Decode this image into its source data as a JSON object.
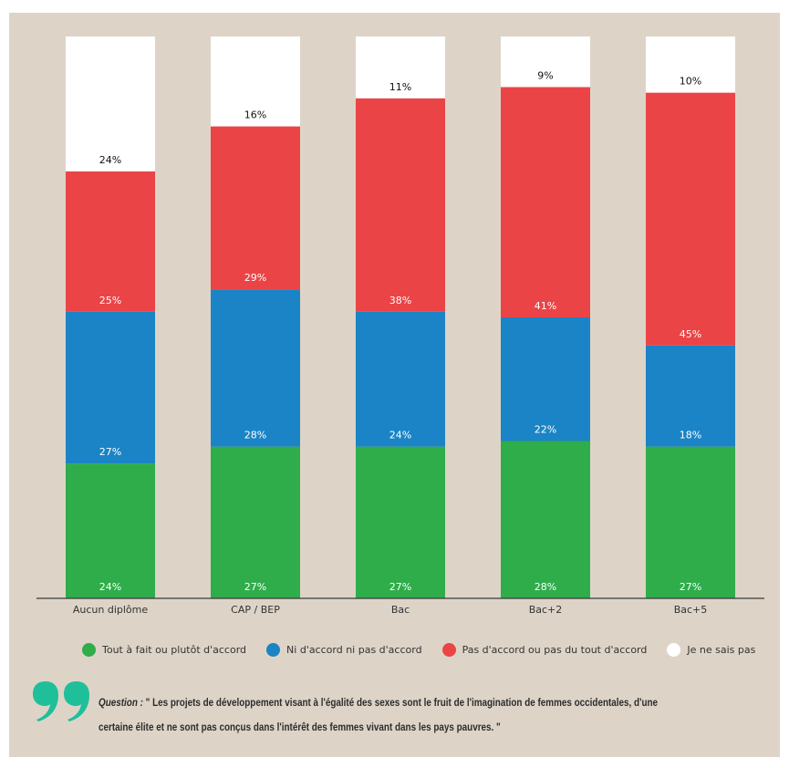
{
  "chart_data": {
    "type": "bar",
    "stacked": true,
    "categories": [
      "Aucun diplôme",
      "CAP / BEP",
      "Bac",
      "Bac+2",
      "Bac+5"
    ],
    "series": [
      {
        "name": "Tout à fait ou plutôt d'accord",
        "values": [
          24,
          27,
          27,
          28,
          27
        ],
        "labels": [
          "24%",
          "27%",
          "27%",
          "28%",
          "27%"
        ],
        "color": "#2fad4a"
      },
      {
        "name": "Ni d'accord ni pas d'accord",
        "values": [
          27,
          28,
          24,
          22,
          18
        ],
        "labels": [
          "27%",
          "28%",
          "24%",
          "22%",
          "18%"
        ],
        "color": "#1b84c6"
      },
      {
        "name": "Pas d'accord ou pas du tout d'accord",
        "values": [
          25,
          29,
          38,
          41,
          45
        ],
        "labels": [
          "25%",
          "29%",
          "38%",
          "41%",
          "45%"
        ],
        "color": "#eb4446"
      },
      {
        "name": "Je ne sais pas",
        "values": [
          24,
          16,
          11,
          9,
          10
        ],
        "labels": [
          "24%",
          "16%",
          "11%",
          "9%",
          "10%"
        ],
        "color": "#ffffff"
      }
    ],
    "ylim": [
      0,
      100
    ],
    "grid": false,
    "legend_position": "bottom"
  },
  "question": {
    "prefix": "Question :",
    "text": "\" Les projets de développement visant à l'égalité des sexes sont le fruit de l'imagination de femmes occidentales, d'une certaine élite et ne sont pas conçus dans l'intérêt des femmes vivant dans les pays pauvres. \""
  },
  "colors": {
    "background": "#ddd4c7",
    "quote_mark": "#1fbf9a"
  },
  "icons": {
    "quote": "quote-mark-icon"
  }
}
